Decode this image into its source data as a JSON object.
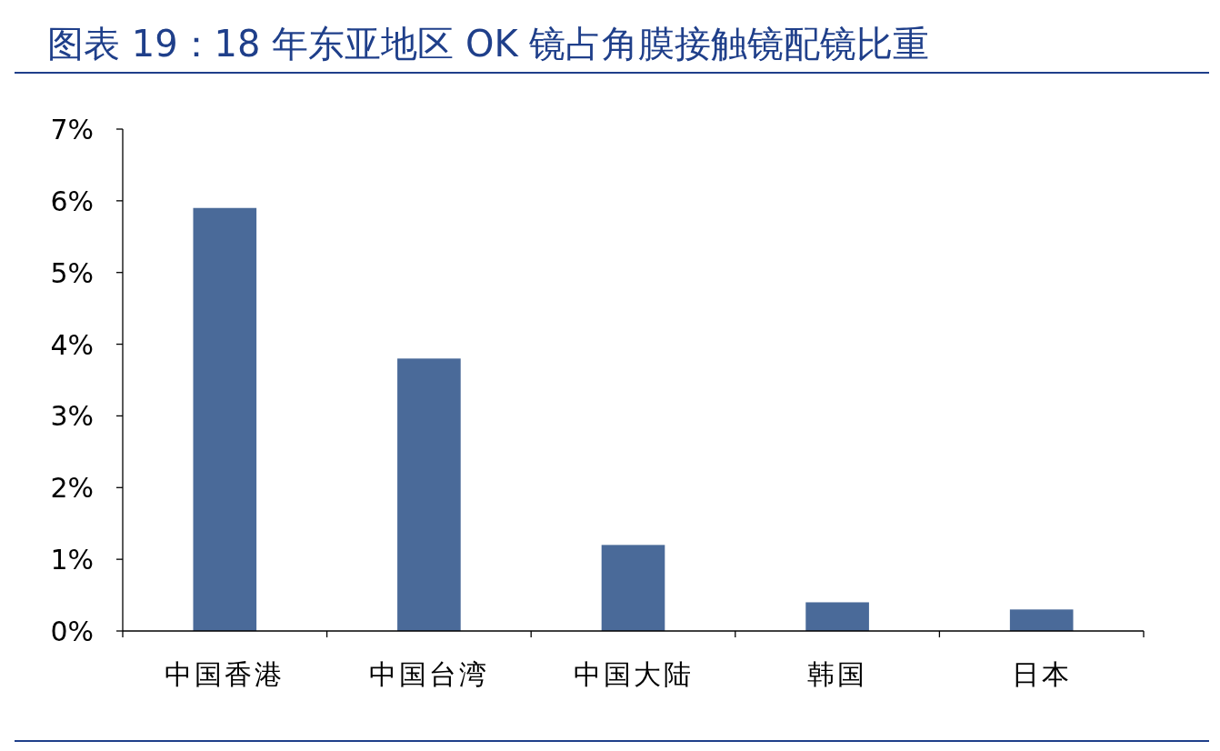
{
  "chart_data": {
    "type": "bar",
    "title": "图表 19：18 年东亚地区 OK 镜占角膜接触镜配镜比重",
    "categories": [
      "中国香港",
      "中国台湾",
      "中国大陆",
      "韩国",
      "日本"
    ],
    "values": [
      5.9,
      3.8,
      1.2,
      0.4,
      0.3
    ],
    "color": "#4a6a99",
    "ylim": [
      0,
      7
    ],
    "yticks": [
      {
        "value": 0,
        "label": "0%"
      },
      {
        "value": 1,
        "label": "1%"
      },
      {
        "value": 2,
        "label": "2%"
      },
      {
        "value": 3,
        "label": "3%"
      },
      {
        "value": 4,
        "label": "4%"
      },
      {
        "value": 5,
        "label": "5%"
      },
      {
        "value": 6,
        "label": "6%"
      },
      {
        "value": 7,
        "label": "7%"
      }
    ],
    "grid": false
  }
}
